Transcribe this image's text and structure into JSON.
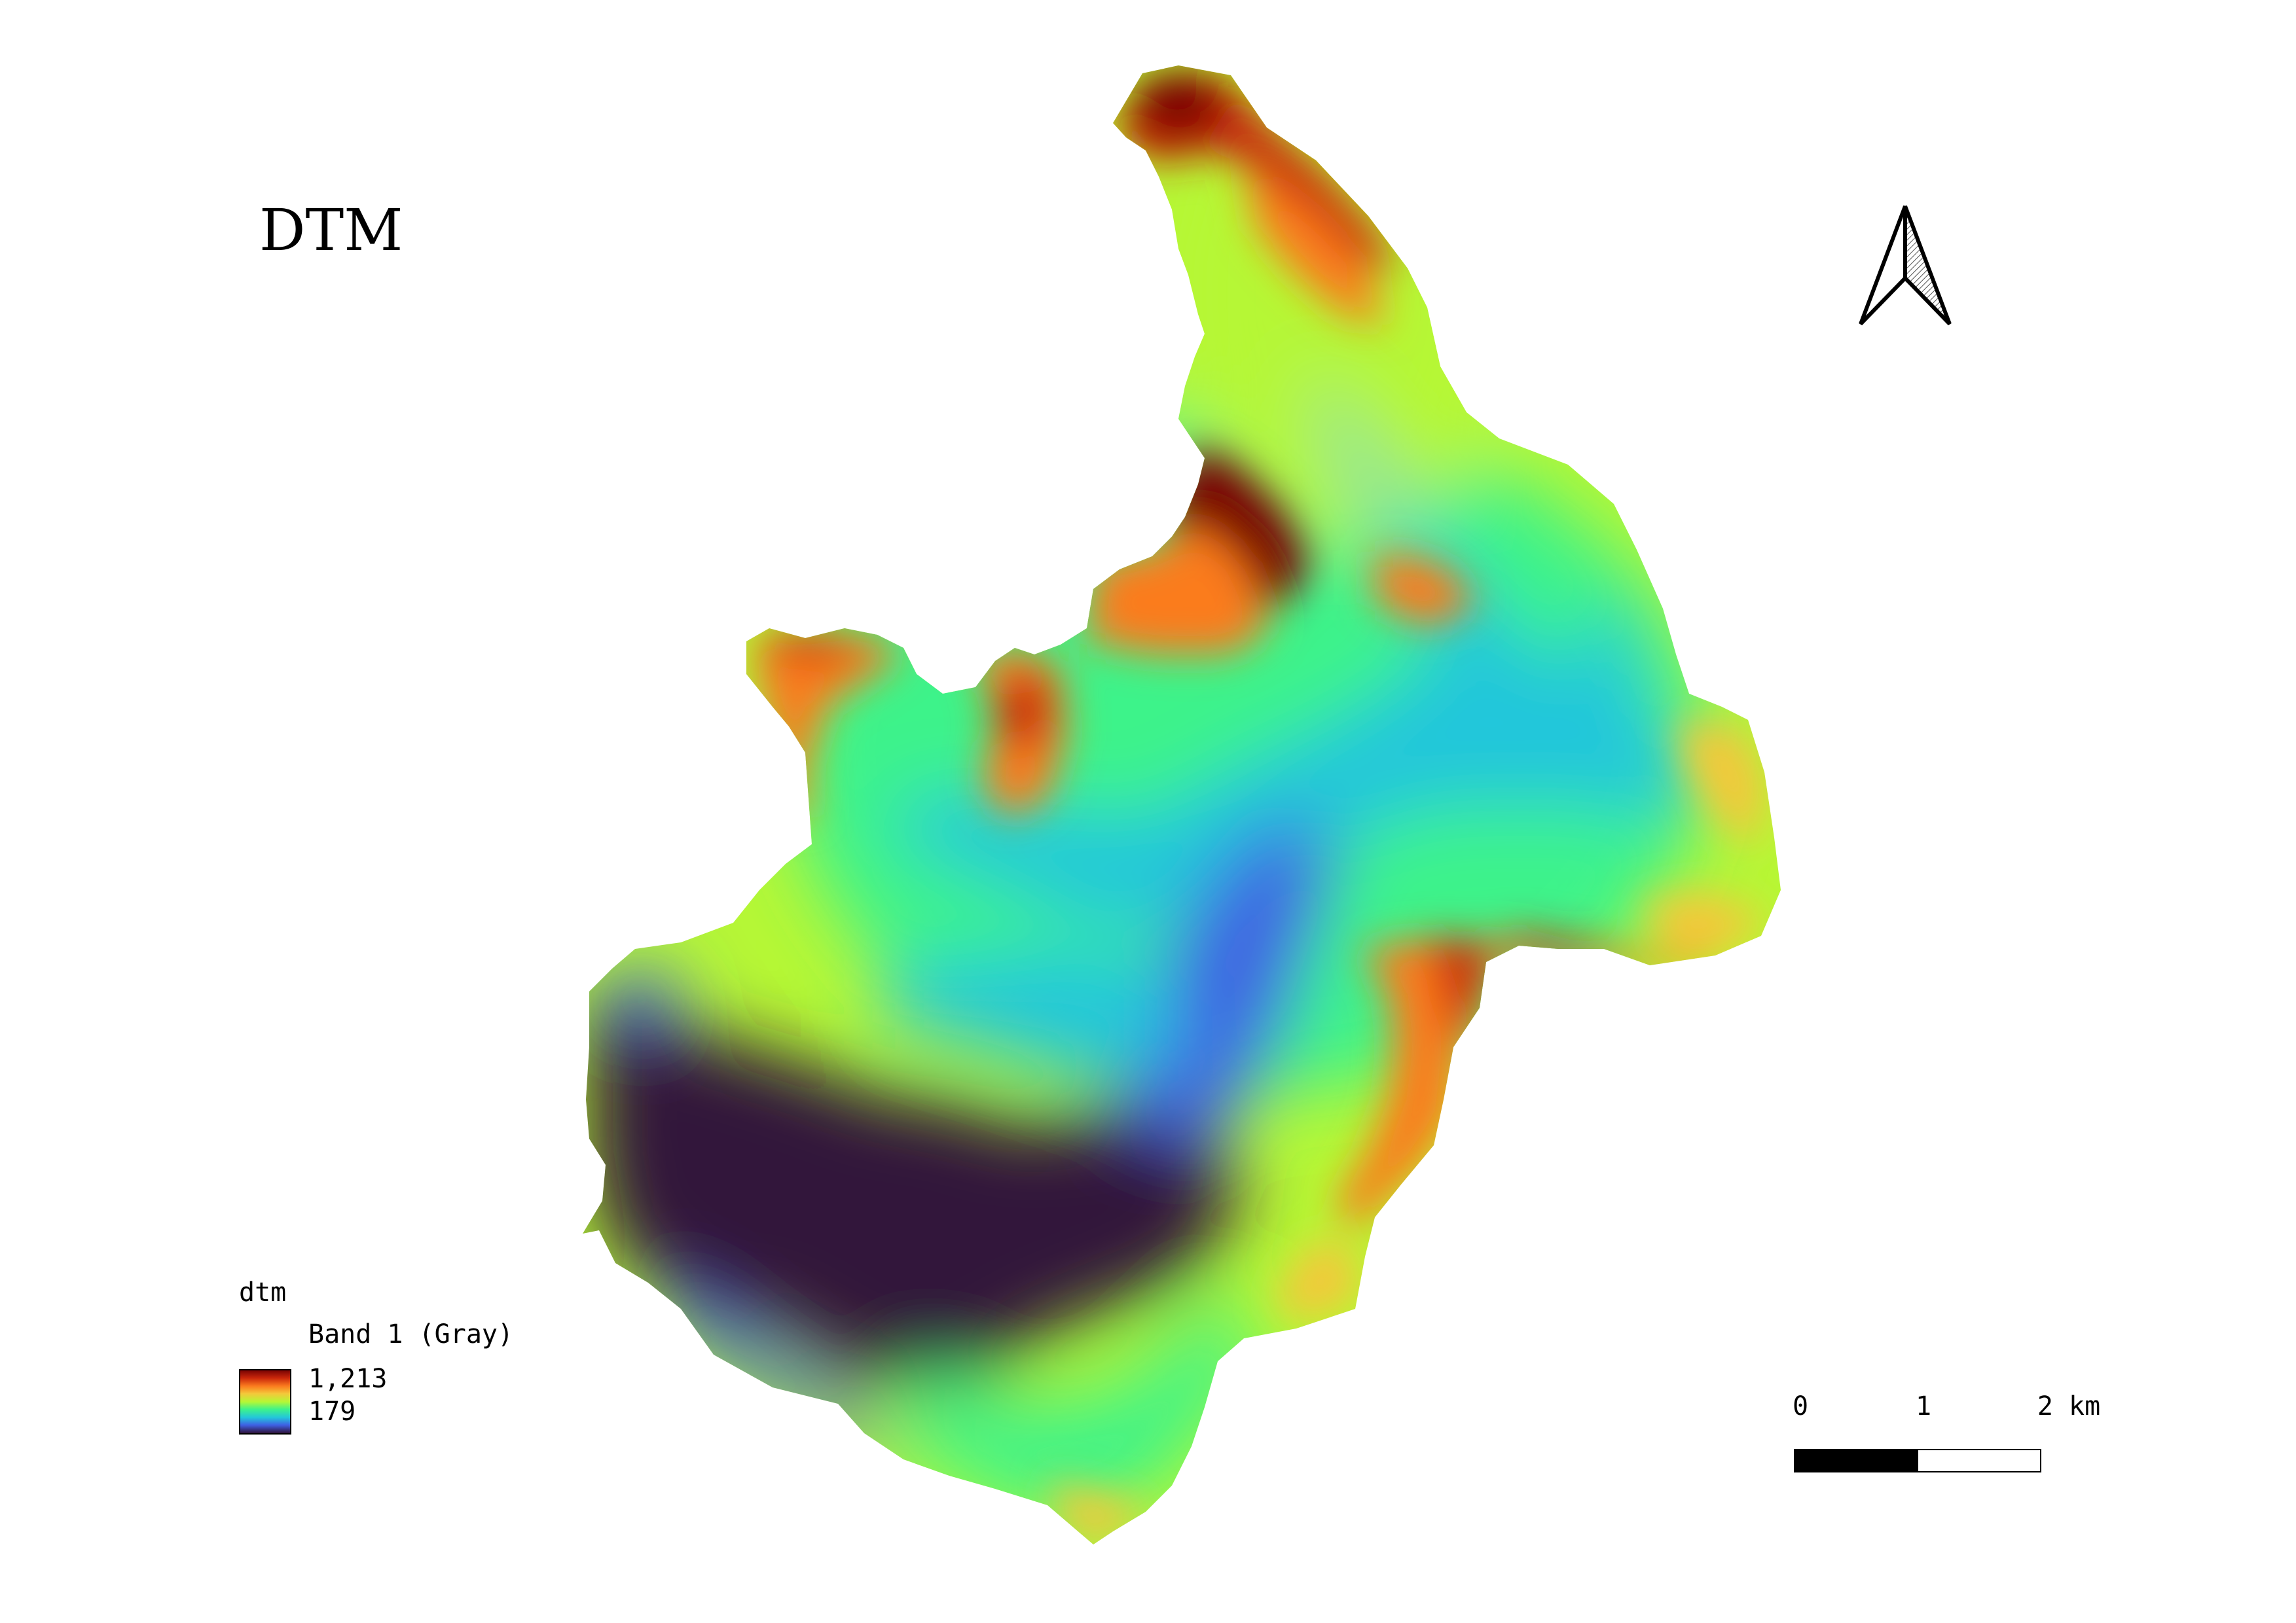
{
  "map": {
    "title": "DTM",
    "legend": {
      "layer_name": "dtm",
      "band_label": "Band 1 (Gray)",
      "max_label": "1,213",
      "min_label": "179",
      "colors": [
        "#30123b",
        "#3f60e4",
        "#23c6db",
        "#3ef38a",
        "#b6f735",
        "#f4c83a",
        "#fb7c1f",
        "#c9260a",
        "#7a0403"
      ]
    },
    "scale_bar": {
      "labels": [
        "0",
        "1",
        "2 km"
      ]
    },
    "north_arrow": {
      "icon": "north-arrow-icon"
    }
  }
}
